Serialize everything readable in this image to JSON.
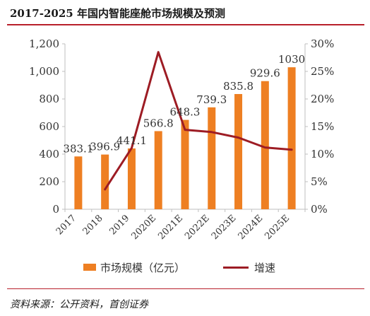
{
  "title": "2017-2025 年国内智能座舱市场规模及预测",
  "source": "资料来源：公开资料，首创证券",
  "colors": {
    "bar": "#ee7f22",
    "line": "#9d1c24",
    "axis": "#bfbfbf",
    "rule": "#b8202b"
  },
  "chart_data": {
    "type": "bar",
    "categories": [
      "2017",
      "2018",
      "2019",
      "2020E",
      "2021E",
      "2022E",
      "2023E",
      "2024E",
      "2025E"
    ],
    "series": [
      {
        "name": "市场规模（亿元）",
        "type": "bar",
        "axis": "left",
        "values": [
          383.1,
          396.9,
          441.1,
          566.8,
          648.3,
          739.3,
          835.8,
          929.6,
          1030
        ],
        "labels": [
          "383.1",
          "396.9",
          "441.1",
          "566.8",
          "648.3",
          "739.3",
          "835.8",
          "929.6",
          "1030"
        ]
      },
      {
        "name": "增速",
        "type": "line",
        "axis": "right",
        "values": [
          null,
          3.6,
          11.1,
          28.5,
          14.4,
          14.0,
          13.0,
          11.2,
          10.8
        ]
      }
    ],
    "y_left": {
      "min": 0,
      "max": 1200,
      "ticks": [
        0,
        200,
        400,
        600,
        800,
        1000,
        1200
      ],
      "tick_labels": [
        "0",
        "200",
        "400",
        "600",
        "800",
        "1,000",
        "1,200"
      ]
    },
    "y_right": {
      "min": 0,
      "max": 30,
      "ticks": [
        0,
        5,
        10,
        15,
        20,
        25,
        30
      ],
      "tick_labels": [
        "0%",
        "5%",
        "10%",
        "15%",
        "20%",
        "25%",
        "30%"
      ]
    },
    "grid": false,
    "legend": "bottom"
  }
}
